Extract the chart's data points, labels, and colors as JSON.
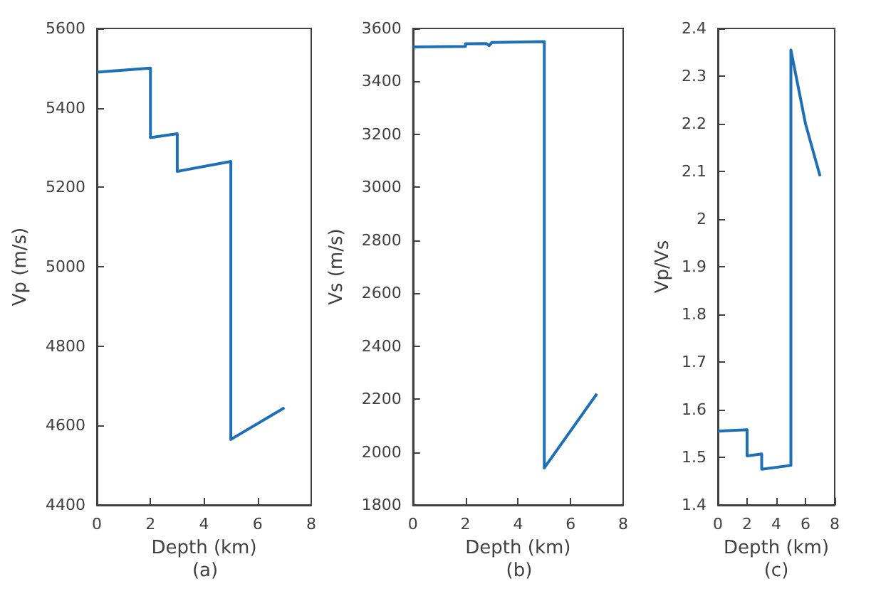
{
  "chart_data": [
    {
      "type": "line",
      "xlabel": "Depth (km)",
      "ylabel": "Vp (m/s)",
      "annotations": [
        "(a)"
      ],
      "xlim": [
        0,
        8
      ],
      "xticks": [
        0,
        2,
        4,
        6,
        8
      ],
      "ylim": [
        4400,
        5600
      ],
      "yticks": [
        4400,
        4600,
        4800,
        5000,
        5200,
        5400,
        5600
      ],
      "grid": false,
      "marker": "none",
      "series": [
        {
          "color": "#1f6fb4",
          "x": [
            0,
            2,
            2,
            3,
            3,
            5,
            5,
            7
          ],
          "values": [
            5490,
            5500,
            5325,
            5335,
            5240,
            5265,
            4565,
            4645
          ]
        }
      ]
    },
    {
      "type": "line",
      "xlabel": "Depth (km)",
      "ylabel": "Vs (m/s)",
      "annotations": [
        "(b)"
      ],
      "xlim": [
        0,
        8
      ],
      "xticks": [
        0,
        2,
        4,
        6,
        8
      ],
      "ylim": [
        1800,
        3600
      ],
      "yticks": [
        1800,
        2000,
        2200,
        2400,
        2600,
        2800,
        3000,
        3200,
        3400,
        3600
      ],
      "grid": false,
      "marker": "none",
      "series": [
        {
          "color": "#1f6fb4",
          "x": [
            0,
            2,
            2,
            2.8,
            2.9,
            3,
            5,
            5,
            7
          ],
          "values": [
            3530,
            3532,
            3542,
            3543,
            3535,
            3547,
            3550,
            1940,
            2220
          ]
        }
      ]
    },
    {
      "type": "line",
      "xlabel": "Depth (km)",
      "ylabel": "Vp/Vs",
      "annotations": [
        "(c)"
      ],
      "xlim": [
        0,
        8
      ],
      "xticks": [
        0,
        2,
        4,
        6,
        8
      ],
      "ylim": [
        1.4,
        2.4
      ],
      "yticks": [
        1.4,
        1.5,
        1.6,
        1.7,
        1.8,
        1.9,
        2,
        2.1,
        2.2,
        2.3,
        2.4
      ],
      "grid": false,
      "marker": "none",
      "series": [
        {
          "color": "#1f6fb4",
          "x": [
            0,
            2,
            2,
            3,
            3,
            5,
            5,
            6,
            7
          ],
          "values": [
            1.555,
            1.558,
            1.503,
            1.507,
            1.475,
            1.483,
            2.355,
            2.2,
            2.09
          ]
        }
      ]
    }
  ]
}
